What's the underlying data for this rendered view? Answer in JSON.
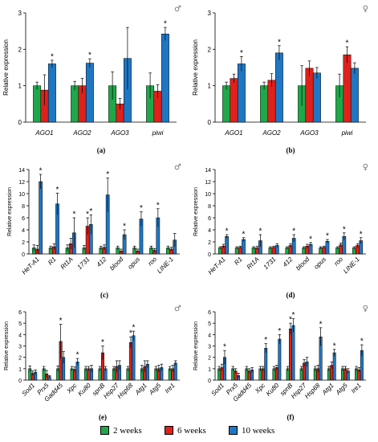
{
  "legend": {
    "items": [
      {
        "label": "2 weeks",
        "color": "#1ea84a"
      },
      {
        "label": "6 weeks",
        "color": "#e0201b"
      },
      {
        "label": "10 weeks",
        "color": "#1f77c4"
      }
    ]
  },
  "chart_data": [
    {
      "type": "bar",
      "panel": "(a)",
      "sex_symbol": "♂",
      "ylabel": "Relative expression",
      "ylim": [
        0,
        3
      ],
      "yticks": [
        0,
        1,
        2,
        3
      ],
      "categories": [
        "AGO1",
        "AGO2",
        "AGO3",
        "piwi"
      ],
      "series": [
        {
          "values": [
            1.0,
            1.0,
            1.0,
            1.0
          ],
          "errors": [
            0.1,
            0.12,
            0.38,
            0.35
          ]
        },
        {
          "values": [
            0.88,
            1.0,
            0.5,
            0.85
          ],
          "errors": [
            0.42,
            0.2,
            0.15,
            0.18
          ]
        },
        {
          "values": [
            1.6,
            1.62,
            1.75,
            2.42
          ],
          "errors": [
            0.1,
            0.12,
            0.85,
            0.18
          ]
        }
      ],
      "stars": [
        {
          "cat": 0,
          "series": 2
        },
        {
          "cat": 1,
          "series": 2
        },
        {
          "cat": 3,
          "series": 2
        }
      ]
    },
    {
      "type": "bar",
      "panel": "(b)",
      "sex_symbol": "♀",
      "ylabel": "Relative expression",
      "ylim": [
        0,
        3
      ],
      "yticks": [
        0,
        1,
        2,
        3
      ],
      "categories": [
        "AGO1",
        "AGO2",
        "AGO3",
        "piwi"
      ],
      "series": [
        {
          "values": [
            1.0,
            1.0,
            1.0,
            1.0
          ],
          "errors": [
            0.1,
            0.1,
            0.55,
            0.32
          ]
        },
        {
          "values": [
            1.2,
            1.15,
            1.48,
            1.85
          ],
          "errors": [
            0.12,
            0.18,
            0.2,
            0.22
          ]
        },
        {
          "values": [
            1.6,
            1.9,
            1.35,
            1.48
          ],
          "errors": [
            0.2,
            0.2,
            0.15,
            0.15
          ]
        }
      ],
      "stars": [
        {
          "cat": 0,
          "series": 2
        },
        {
          "cat": 1,
          "series": 2
        },
        {
          "cat": 3,
          "series": 1
        }
      ]
    },
    {
      "type": "bar",
      "panel": "(c)",
      "sex_symbol": "♂",
      "ylabel": "Relative expression",
      "ylim": [
        0,
        14
      ],
      "yticks": [
        0,
        2,
        4,
        6,
        8,
        10,
        12,
        14
      ],
      "categories": [
        "HeT-A1",
        "R1",
        "Rt1A",
        "1731",
        "412",
        "blood",
        "opus",
        "roo",
        "LINE-1"
      ],
      "series": [
        {
          "values": [
            1.0,
            1.0,
            1.0,
            1.0,
            1.0,
            1.0,
            1.0,
            1.0,
            1.0
          ],
          "errors": [
            0.5,
            0.3,
            0.5,
            0.4,
            0.3,
            0.3,
            0.3,
            0.3,
            0.3
          ]
        },
        {
          "values": [
            0.8,
            1.2,
            1.7,
            4.6,
            1.1,
            0.5,
            0.5,
            0.6,
            0.8
          ],
          "errors": [
            0.6,
            0.5,
            0.9,
            1.4,
            0.4,
            0.3,
            0.3,
            0.3,
            0.3
          ]
        },
        {
          "values": [
            12.0,
            8.3,
            3.5,
            4.9,
            9.8,
            3.2,
            5.8,
            6.0,
            2.3
          ],
          "errors": [
            1.2,
            1.8,
            2.5,
            1.6,
            2.8,
            0.8,
            1.2,
            1.5,
            1.1
          ]
        }
      ],
      "stars": [
        {
          "cat": 0,
          "series": 2
        },
        {
          "cat": 1,
          "series": 2
        },
        {
          "cat": 2,
          "series": 2
        },
        {
          "cat": 3,
          "series": 1
        },
        {
          "cat": 3,
          "series": 2
        },
        {
          "cat": 4,
          "series": 2
        },
        {
          "cat": 5,
          "series": 2
        },
        {
          "cat": 6,
          "series": 2
        },
        {
          "cat": 7,
          "series": 2
        }
      ]
    },
    {
      "type": "bar",
      "panel": "(d)",
      "sex_symbol": "♀",
      "ylabel": "Relative expression",
      "ylim": [
        0,
        14
      ],
      "yticks": [
        0,
        2,
        4,
        6,
        8,
        10,
        12,
        14
      ],
      "categories": [
        "HeT-A1",
        "R1",
        "Rt1A",
        "1731",
        "412",
        "blood",
        "opus",
        "roo",
        "LINE-1"
      ],
      "series": [
        {
          "values": [
            1.0,
            1.0,
            1.0,
            1.0,
            1.0,
            1.0,
            1.0,
            1.0,
            1.0
          ],
          "errors": [
            0.2,
            0.2,
            0.2,
            0.2,
            0.2,
            0.2,
            0.2,
            0.2,
            0.2
          ]
        },
        {
          "values": [
            1.3,
            1.1,
            1.0,
            1.1,
            1.4,
            1.3,
            1.1,
            1.5,
            1.4
          ],
          "errors": [
            0.3,
            0.2,
            0.3,
            0.2,
            0.3,
            0.3,
            0.2,
            0.3,
            0.3
          ]
        },
        {
          "values": [
            2.9,
            2.4,
            2.2,
            1.4,
            2.6,
            1.6,
            2.1,
            2.9,
            2.2
          ],
          "errors": [
            0.3,
            0.3,
            1.0,
            0.3,
            0.6,
            0.3,
            0.3,
            0.6,
            0.5
          ]
        }
      ],
      "stars": [
        {
          "cat": 0,
          "series": 2
        },
        {
          "cat": 1,
          "series": 2
        },
        {
          "cat": 2,
          "series": 2
        },
        {
          "cat": 4,
          "series": 2
        },
        {
          "cat": 5,
          "series": 2
        },
        {
          "cat": 6,
          "series": 2
        },
        {
          "cat": 7,
          "series": 2
        },
        {
          "cat": 8,
          "series": 2
        }
      ]
    },
    {
      "type": "bar",
      "panel": "(e)",
      "sex_symbol": "♂",
      "ylabel": "Relative expression",
      "ylim": [
        0,
        6
      ],
      "yticks": [
        0,
        1,
        2,
        3,
        4,
        5,
        6
      ],
      "categories": [
        "Sod1",
        "Prx5",
        "Gadd45",
        "Xpc",
        "Ku80",
        "spnB",
        "Hsp27",
        "Hsp68",
        "Atg1",
        "Atg5",
        "Ire1"
      ],
      "series": [
        {
          "values": [
            1.0,
            1.0,
            1.0,
            1.0,
            1.0,
            1.0,
            1.0,
            1.0,
            1.0,
            1.0,
            1.0
          ],
          "errors": [
            0.25,
            0.2,
            0.25,
            0.2,
            0.2,
            0.2,
            0.2,
            0.2,
            0.3,
            0.2,
            0.2
          ]
        },
        {
          "values": [
            0.6,
            0.55,
            3.4,
            0.95,
            1.0,
            2.4,
            1.2,
            3.3,
            1.2,
            1.0,
            1.0
          ],
          "errors": [
            0.2,
            0.3,
            1.5,
            0.2,
            0.2,
            0.6,
            0.5,
            0.5,
            0.5,
            0.3,
            0.3
          ]
        },
        {
          "values": [
            0.7,
            0.3,
            2.0,
            1.6,
            1.0,
            1.0,
            1.3,
            3.9,
            1.4,
            1.1,
            1.5
          ],
          "errors": [
            0.2,
            0.1,
            0.5,
            0.3,
            0.3,
            0.2,
            0.4,
            0.4,
            0.3,
            0.3,
            0.2
          ]
        }
      ],
      "stars": [
        {
          "cat": 2,
          "series": 1
        },
        {
          "cat": 3,
          "series": 2
        },
        {
          "cat": 5,
          "series": 1
        },
        {
          "cat": 7,
          "series": 1
        },
        {
          "cat": 7,
          "series": 2
        }
      ]
    },
    {
      "type": "bar",
      "panel": "(f)",
      "sex_symbol": "♀",
      "ylabel": "Relative expression",
      "ylim": [
        0,
        6
      ],
      "yticks": [
        0,
        1,
        2,
        3,
        4,
        5,
        6
      ],
      "categories": [
        "Sod1",
        "Prx5",
        "Gadd45",
        "Xpc",
        "Ku80",
        "spnB",
        "Hsp27",
        "Hsp68",
        "Atg1",
        "Atg5",
        "Ire1"
      ],
      "series": [
        {
          "values": [
            1.0,
            1.0,
            1.0,
            1.0,
            1.0,
            1.0,
            1.0,
            1.0,
            1.0,
            1.0,
            1.0
          ],
          "errors": [
            0.2,
            0.2,
            0.2,
            0.2,
            0.2,
            0.2,
            0.2,
            0.2,
            0.2,
            0.2,
            0.2
          ]
        },
        {
          "values": [
            1.1,
            0.8,
            0.8,
            1.0,
            1.1,
            4.5,
            1.5,
            1.0,
            1.3,
            1.0,
            0.9
          ],
          "errors": [
            0.3,
            0.2,
            0.2,
            0.2,
            0.2,
            0.5,
            0.3,
            0.3,
            0.3,
            0.2,
            0.2
          ]
        },
        {
          "values": [
            2.0,
            0.4,
            0.9,
            2.8,
            3.6,
            4.8,
            1.6,
            3.8,
            2.4,
            0.8,
            2.6
          ],
          "errors": [
            0.6,
            0.2,
            0.2,
            0.4,
            0.4,
            0.6,
            0.4,
            0.8,
            0.3,
            0.2,
            0.5
          ]
        }
      ],
      "stars": [
        {
          "cat": 0,
          "series": 2
        },
        {
          "cat": 3,
          "series": 2
        },
        {
          "cat": 4,
          "series": 2
        },
        {
          "cat": 5,
          "series": 1
        },
        {
          "cat": 5,
          "series": 2
        },
        {
          "cat": 7,
          "series": 2
        },
        {
          "cat": 8,
          "series": 2
        },
        {
          "cat": 10,
          "series": 2
        }
      ]
    }
  ]
}
